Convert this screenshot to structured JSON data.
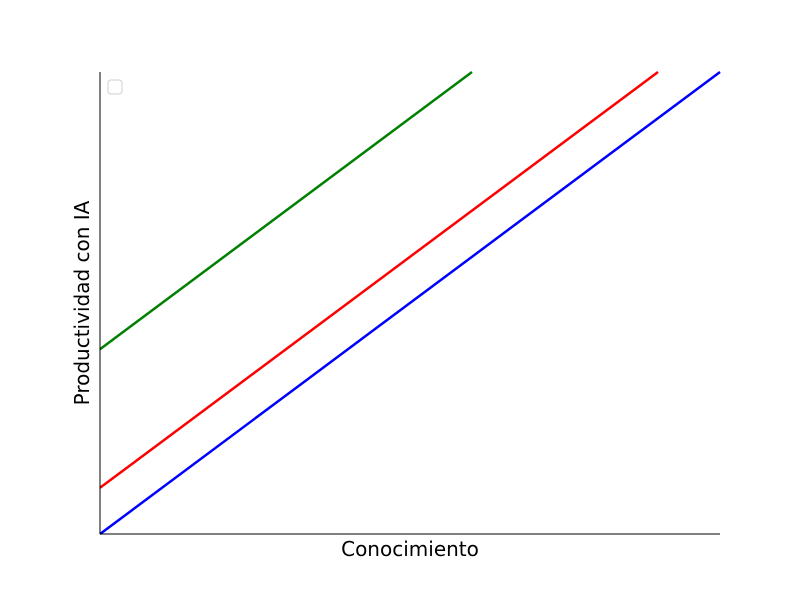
{
  "chart_data": {
    "type": "line",
    "title": "",
    "xlabel": "Conocimiento",
    "ylabel": "Productividad con IA",
    "xlim": [
      0,
      10
    ],
    "ylim": [
      0,
      7.5
    ],
    "grid": false,
    "legend": {
      "placement": "top-left",
      "entries": []
    },
    "series": [
      {
        "color": "#0000ff",
        "x": [
          0,
          10
        ],
        "y": [
          0,
          7.5
        ]
      },
      {
        "color": "#ff0000",
        "x": [
          0,
          9
        ],
        "y": [
          0.75,
          7.5
        ]
      },
      {
        "color": "#008000",
        "x": [
          0,
          6
        ],
        "y": [
          3.0,
          7.5
        ]
      }
    ]
  }
}
